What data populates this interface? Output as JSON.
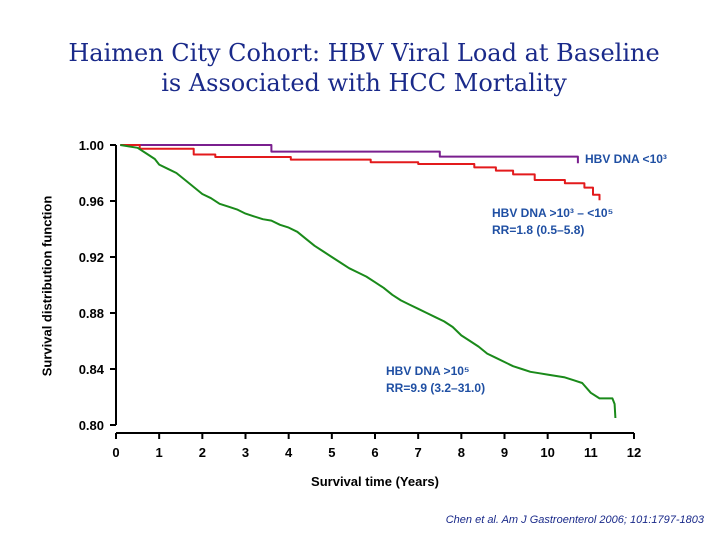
{
  "slide": {
    "title_line1": "Haimen City Cohort: HBV Viral Load at Baseline",
    "title_line2": "is Associated with HCC Mortality",
    "citation": "Chen et al. Am J Gastroenterol 2006; 101:1797-1803"
  },
  "annotations": {
    "low_label": "HBV DNA <10³",
    "mid_label": "HBV DNA >10³ – <10⁵",
    "mid_rr": "RR=1.8 (0.5–5.8)",
    "high_label": "HBV DNA >10⁵",
    "high_rr": "RR=9.9 (3.2–31.0)"
  },
  "chart_data": {
    "type": "line",
    "title": "Haimen City Cohort: HBV Viral Load at Baseline is Associated with HCC Mortality",
    "xlabel": "Survival time (Years)",
    "ylabel": "Survival distribution function",
    "xlim": [
      0,
      12
    ],
    "ylim": [
      0.8,
      1.0
    ],
    "x_ticks": [
      "0",
      "1",
      "2",
      "3",
      "4",
      "5",
      "6",
      "7",
      "8",
      "9",
      "10",
      "11",
      "12"
    ],
    "y_ticks": [
      "0.80",
      "0.84",
      "0.88",
      "0.92",
      "0.96",
      "1.00"
    ],
    "grid": false,
    "series": [
      {
        "name": "HBV DNA <10³",
        "color": "#7a1f8e",
        "step": true,
        "points": [
          [
            0.1,
            1.0
          ],
          [
            3.6,
            1.0
          ],
          [
            3.6,
            0.9953
          ],
          [
            7.5,
            0.9953
          ],
          [
            7.5,
            0.9917
          ],
          [
            10.7,
            0.9917
          ],
          [
            10.7,
            0.987
          ]
        ]
      },
      {
        "name": "HBV DNA >10³ – <10⁵",
        "color": "#e31a1c",
        "step": true,
        "points": [
          [
            0.1,
            1.0
          ],
          [
            0.55,
            1.0
          ],
          [
            0.55,
            0.9973
          ],
          [
            1.8,
            0.9973
          ],
          [
            1.8,
            0.9932
          ],
          [
            2.3,
            0.9932
          ],
          [
            2.3,
            0.9914
          ],
          [
            4.05,
            0.9914
          ],
          [
            4.05,
            0.9896
          ],
          [
            5.9,
            0.9896
          ],
          [
            5.9,
            0.9877
          ],
          [
            7.0,
            0.9877
          ],
          [
            7.0,
            0.9864
          ],
          [
            8.3,
            0.9864
          ],
          [
            8.3,
            0.984
          ],
          [
            8.8,
            0.984
          ],
          [
            8.8,
            0.9817
          ],
          [
            9.2,
            0.9817
          ],
          [
            9.2,
            0.979
          ],
          [
            9.7,
            0.979
          ],
          [
            9.7,
            0.975
          ],
          [
            10.4,
            0.975
          ],
          [
            10.4,
            0.9727
          ],
          [
            10.85,
            0.9727
          ],
          [
            10.85,
            0.9696
          ],
          [
            11.05,
            0.9696
          ],
          [
            11.05,
            0.9645
          ],
          [
            11.2,
            0.9645
          ],
          [
            11.2,
            0.9605
          ]
        ]
      },
      {
        "name": "HBV DNA >10⁵",
        "color": "#1a8a1a",
        "step": false,
        "points": [
          [
            0.1,
            1.0
          ],
          [
            0.5,
            0.998
          ],
          [
            0.7,
            0.994
          ],
          [
            0.9,
            0.99
          ],
          [
            1.0,
            0.986
          ],
          [
            1.2,
            0.983
          ],
          [
            1.4,
            0.98
          ],
          [
            1.6,
            0.975
          ],
          [
            1.8,
            0.97
          ],
          [
            2.0,
            0.965
          ],
          [
            2.2,
            0.962
          ],
          [
            2.4,
            0.958
          ],
          [
            2.6,
            0.956
          ],
          [
            2.8,
            0.954
          ],
          [
            3.0,
            0.951
          ],
          [
            3.2,
            0.949
          ],
          [
            3.4,
            0.947
          ],
          [
            3.6,
            0.946
          ],
          [
            3.8,
            0.943
          ],
          [
            4.0,
            0.941
          ],
          [
            4.2,
            0.938
          ],
          [
            4.4,
            0.933
          ],
          [
            4.6,
            0.928
          ],
          [
            4.8,
            0.924
          ],
          [
            5.0,
            0.92
          ],
          [
            5.2,
            0.916
          ],
          [
            5.4,
            0.912
          ],
          [
            5.6,
            0.909
          ],
          [
            5.8,
            0.906
          ],
          [
            6.0,
            0.902
          ],
          [
            6.2,
            0.898
          ],
          [
            6.4,
            0.893
          ],
          [
            6.6,
            0.889
          ],
          [
            6.8,
            0.886
          ],
          [
            7.0,
            0.883
          ],
          [
            7.2,
            0.88
          ],
          [
            7.4,
            0.877
          ],
          [
            7.6,
            0.874
          ],
          [
            7.8,
            0.87
          ],
          [
            8.0,
            0.864
          ],
          [
            8.2,
            0.86
          ],
          [
            8.4,
            0.856
          ],
          [
            8.6,
            0.851
          ],
          [
            8.8,
            0.848
          ],
          [
            9.0,
            0.845
          ],
          [
            9.2,
            0.842
          ],
          [
            9.4,
            0.84
          ],
          [
            9.6,
            0.838
          ],
          [
            9.8,
            0.837
          ],
          [
            10.0,
            0.836
          ],
          [
            10.2,
            0.835
          ],
          [
            10.4,
            0.834
          ],
          [
            10.6,
            0.832
          ],
          [
            10.8,
            0.83
          ],
          [
            11.0,
            0.823
          ],
          [
            11.2,
            0.819
          ],
          [
            11.3,
            0.819
          ],
          [
            11.5,
            0.819
          ],
          [
            11.55,
            0.815
          ],
          [
            11.57,
            0.805
          ]
        ]
      }
    ]
  }
}
